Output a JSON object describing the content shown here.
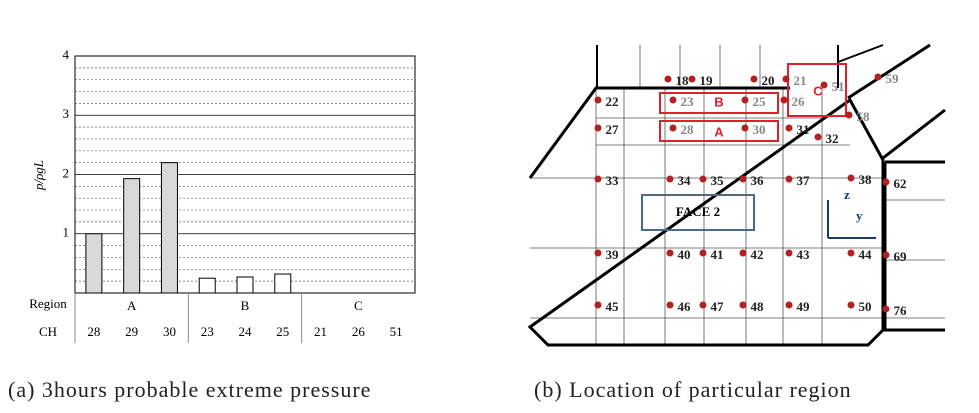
{
  "chart_data": {
    "type": "bar",
    "y_label": "p/ρgL",
    "ylim": [
      0,
      4
    ],
    "yticks": [
      1,
      2,
      3,
      4
    ],
    "minor_yticks": [
      0.2,
      0.4,
      0.6,
      0.8,
      1.2,
      1.4,
      1.6,
      1.8,
      2.2,
      2.4,
      2.6,
      2.8,
      3.2,
      3.4,
      3.6,
      3.8
    ],
    "grid": true,
    "row_labels": [
      "Region",
      "CH"
    ],
    "regions": [
      "A",
      "B",
      "C"
    ],
    "categories": [
      "28",
      "29",
      "30",
      "23",
      "24",
      "25",
      "21",
      "26",
      "51"
    ],
    "values": [
      1.0,
      1.93,
      2.2,
      0.25,
      0.27,
      0.32,
      0,
      0,
      0
    ],
    "colors": [
      "#d9d9d9",
      "#d9d9d9",
      "#d9d9d9",
      "#ffffff",
      "#ffffff",
      "#ffffff",
      "#ffffff",
      "#ffffff",
      "#ffffff"
    ]
  },
  "diagram": {
    "labels": [
      "18",
      "19",
      "20",
      "21",
      "22",
      "23",
      "25",
      "26",
      "27",
      "28",
      "30",
      "31",
      "32",
      "58",
      "51",
      "59",
      "33",
      "34",
      "35",
      "36",
      "37",
      "38",
      "62",
      "39",
      "40",
      "41",
      "42",
      "43",
      "44",
      "69",
      "45",
      "46",
      "47",
      "48",
      "49",
      "50",
      "76"
    ],
    "regions": [
      "A",
      "B",
      "C"
    ],
    "face": "FACE 2",
    "axes": [
      "z",
      "y"
    ]
  },
  "captions": [
    "(a) 3hours probable extreme pressure",
    "(b) Location of particular region"
  ]
}
